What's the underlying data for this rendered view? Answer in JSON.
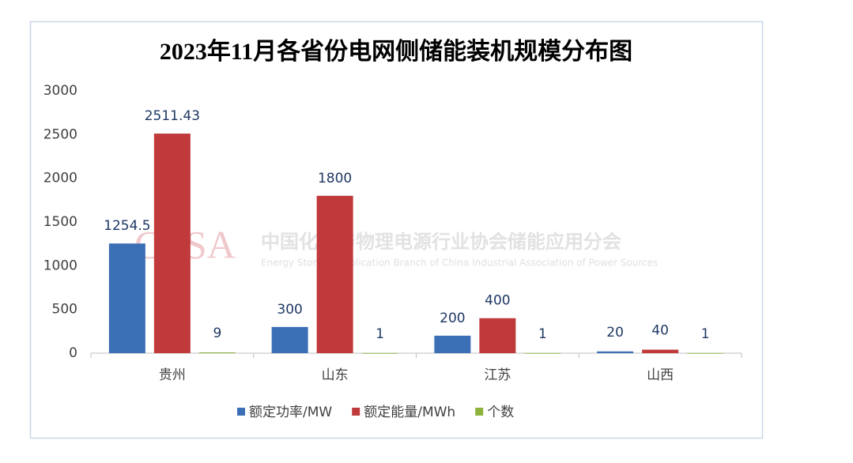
{
  "chart_data": {
    "type": "bar",
    "title": "2023年11月各省份电网侧储能装机规模分布图",
    "categories": [
      "贵州",
      "山东",
      "江苏",
      "山西"
    ],
    "series": [
      {
        "name": "额定功率/MW",
        "color": "#3b6fb6",
        "values": [
          1254.5,
          300,
          200,
          20
        ]
      },
      {
        "name": "额定能量/MWh",
        "color": "#c0393b",
        "values": [
          2511.43,
          1800,
          400,
          40
        ]
      },
      {
        "name": "个数",
        "color": "#8db33c",
        "values": [
          9,
          1,
          1,
          1
        ]
      }
    ],
    "ylim": [
      0,
      3000
    ],
    "yticks": [
      0,
      500,
      1000,
      1500,
      2000,
      2500,
      3000
    ],
    "grid": false,
    "legend": "bottom",
    "watermark": {
      "logo": "CESA",
      "name": "中国化学与物理电源行业协会储能应用分会",
      "name_en": "Energy Storage Application Branch of China Industrial Association of Power Sources"
    }
  }
}
